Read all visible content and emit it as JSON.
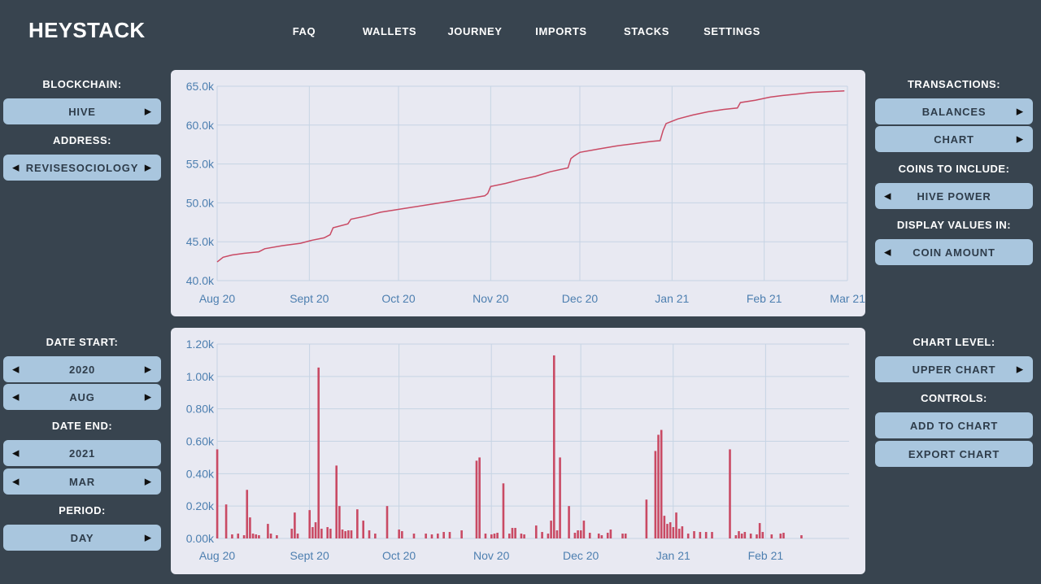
{
  "header": {
    "logo": "HEYSTACK",
    "nav": [
      "FAQ",
      "WALLETS",
      "JOURNEY",
      "IMPORTS",
      "STACKS",
      "SETTINGS"
    ]
  },
  "left_panel": {
    "blockchain_label": "BLOCKCHAIN:",
    "blockchain_value": "HIVE",
    "address_label": "ADDRESS:",
    "address_value": "REVISESOCIOLOGY",
    "date_start_label": "DATE START:",
    "date_start_year": "2020",
    "date_start_month": "AUG",
    "date_end_label": "DATE END:",
    "date_end_year": "2021",
    "date_end_month": "MAR",
    "period_label": "PERIOD:",
    "period_value": "DAY"
  },
  "right_panel": {
    "transactions_label": "TRANSACTIONS:",
    "balances_button": "BALANCES",
    "chart_button": "CHART",
    "coins_label": "COINS TO INCLUDE:",
    "coins_value": "HIVE POWER",
    "display_label": "DISPLAY VALUES IN:",
    "display_value": "COIN AMOUNT",
    "chart_level_label": "CHART LEVEL:",
    "chart_level_value": "UPPER CHART",
    "controls_label": "CONTROLS:",
    "add_button": "ADD TO CHART",
    "export_button": "EXPORT CHART"
  },
  "colors": {
    "background": "#38444f",
    "button": "#a9c6de",
    "chart_bg": "#e8e9f2",
    "series": "#c94a64",
    "tick": "#4d7fb0"
  },
  "chart_data": [
    {
      "type": "line",
      "x_ticks": [
        "Aug 20",
        "Sept 20",
        "Oct 20",
        "Nov 20",
        "Dec 20",
        "Jan 21",
        "Feb 21",
        "Mar 21"
      ],
      "y_ticks": [
        "40.0k",
        "45.0k",
        "50.0k",
        "55.0k",
        "60.0k",
        "65.0k"
      ],
      "ylim": [
        40000,
        65000
      ],
      "x_range_days": [
        0,
        212
      ],
      "grid": true,
      "points": [
        [
          0,
          42400
        ],
        [
          2,
          43000
        ],
        [
          5,
          43300
        ],
        [
          9,
          43500
        ],
        [
          14,
          43700
        ],
        [
          16,
          44100
        ],
        [
          22,
          44500
        ],
        [
          28,
          44800
        ],
        [
          32,
          45200
        ],
        [
          36,
          45500
        ],
        [
          38,
          45900
        ],
        [
          39,
          46800
        ],
        [
          44,
          47300
        ],
        [
          45,
          47900
        ],
        [
          50,
          48300
        ],
        [
          55,
          48800
        ],
        [
          60,
          49100
        ],
        [
          65,
          49400
        ],
        [
          70,
          49700
        ],
        [
          75,
          50000
        ],
        [
          80,
          50300
        ],
        [
          85,
          50600
        ],
        [
          90,
          50900
        ],
        [
          91,
          51200
        ],
        [
          92,
          52100
        ],
        [
          97,
          52500
        ],
        [
          102,
          53000
        ],
        [
          107,
          53400
        ],
        [
          112,
          54000
        ],
        [
          118,
          54500
        ],
        [
          119,
          55700
        ],
        [
          120,
          56000
        ],
        [
          122,
          56500
        ],
        [
          128,
          56900
        ],
        [
          134,
          57300
        ],
        [
          140,
          57600
        ],
        [
          146,
          57900
        ],
        [
          149,
          58000
        ],
        [
          150,
          59300
        ],
        [
          151,
          60200
        ],
        [
          155,
          60800
        ],
        [
          160,
          61300
        ],
        [
          165,
          61700
        ],
        [
          170,
          62000
        ],
        [
          175,
          62200
        ],
        [
          176,
          62900
        ],
        [
          181,
          63200
        ],
        [
          186,
          63600
        ],
        [
          190,
          63800
        ],
        [
          195,
          64000
        ],
        [
          200,
          64200
        ],
        [
          205,
          64300
        ],
        [
          211,
          64400
        ]
      ]
    },
    {
      "type": "bar",
      "x_ticks": [
        "Aug 20",
        "Sept 20",
        "Oct 20",
        "Nov 20",
        "Dec 20",
        "Jan 21",
        "Feb 21"
      ],
      "y_ticks": [
        "0.00k",
        "0.20k",
        "0.40k",
        "0.60k",
        "0.80k",
        "1.00k",
        "1.20k"
      ],
      "ylim": [
        0,
        1200
      ],
      "x_range_days": [
        0,
        212
      ],
      "grid": true,
      "bars": [
        [
          0,
          550
        ],
        [
          3,
          210
        ],
        [
          5,
          25
        ],
        [
          7,
          30
        ],
        [
          9,
          20
        ],
        [
          10,
          300
        ],
        [
          11,
          130
        ],
        [
          12,
          30
        ],
        [
          13,
          25
        ],
        [
          14,
          20
        ],
        [
          17,
          90
        ],
        [
          18,
          30
        ],
        [
          20,
          20
        ],
        [
          25,
          60
        ],
        [
          26,
          160
        ],
        [
          27,
          30
        ],
        [
          31,
          175
        ],
        [
          32,
          70
        ],
        [
          33,
          100
        ],
        [
          34,
          1055
        ],
        [
          35,
          60
        ],
        [
          37,
          70
        ],
        [
          38,
          60
        ],
        [
          40,
          450
        ],
        [
          41,
          200
        ],
        [
          42,
          55
        ],
        [
          43,
          45
        ],
        [
          44,
          50
        ],
        [
          45,
          50
        ],
        [
          47,
          180
        ],
        [
          49,
          110
        ],
        [
          51,
          50
        ],
        [
          53,
          30
        ],
        [
          57,
          200
        ],
        [
          61,
          55
        ],
        [
          62,
          45
        ],
        [
          66,
          30
        ],
        [
          70,
          30
        ],
        [
          72,
          25
        ],
        [
          74,
          30
        ],
        [
          76,
          40
        ],
        [
          78,
          40
        ],
        [
          82,
          50
        ],
        [
          87,
          480
        ],
        [
          88,
          500
        ],
        [
          90,
          30
        ],
        [
          92,
          25
        ],
        [
          93,
          30
        ],
        [
          94,
          35
        ],
        [
          96,
          340
        ],
        [
          98,
          30
        ],
        [
          99,
          65
        ],
        [
          100,
          65
        ],
        [
          102,
          30
        ],
        [
          103,
          25
        ],
        [
          107,
          80
        ],
        [
          109,
          40
        ],
        [
          111,
          30
        ],
        [
          112,
          110
        ],
        [
          113,
          1130
        ],
        [
          114,
          50
        ],
        [
          115,
          500
        ],
        [
          118,
          200
        ],
        [
          120,
          35
        ],
        [
          121,
          50
        ],
        [
          122,
          50
        ],
        [
          123,
          110
        ],
        [
          125,
          35
        ],
        [
          128,
          30
        ],
        [
          129,
          20
        ],
        [
          131,
          35
        ],
        [
          132,
          55
        ],
        [
          136,
          30
        ],
        [
          137,
          30
        ],
        [
          144,
          240
        ],
        [
          147,
          540
        ],
        [
          148,
          640
        ],
        [
          149,
          670
        ],
        [
          150,
          140
        ],
        [
          151,
          90
        ],
        [
          152,
          100
        ],
        [
          153,
          70
        ],
        [
          154,
          160
        ],
        [
          155,
          60
        ],
        [
          156,
          75
        ],
        [
          158,
          30
        ],
        [
          160,
          45
        ],
        [
          162,
          40
        ],
        [
          164,
          40
        ],
        [
          166,
          40
        ],
        [
          172,
          550
        ],
        [
          174,
          20
        ],
        [
          175,
          45
        ],
        [
          176,
          30
        ],
        [
          177,
          40
        ],
        [
          179,
          30
        ],
        [
          181,
          25
        ],
        [
          182,
          95
        ],
        [
          183,
          40
        ],
        [
          186,
          25
        ],
        [
          189,
          30
        ],
        [
          190,
          35
        ],
        [
          196,
          20
        ]
      ]
    }
  ]
}
